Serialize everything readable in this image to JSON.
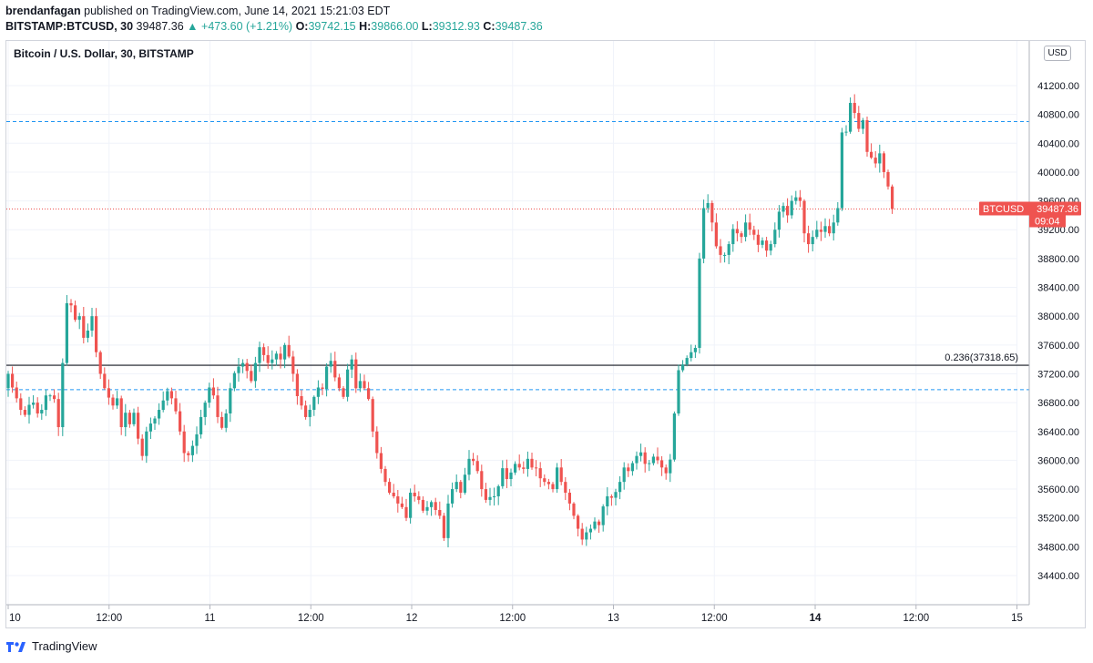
{
  "header": {
    "author": "brendanfagan",
    "published": "published on TradingView.com, June 14, 2021 15:21:03 EDT",
    "symbol": "BITSTAMP:BTCUSD, 30",
    "last": "39487.36",
    "change": "▲ +473.60 (+1.21%)",
    "o_label": "O:",
    "o": "39742.15",
    "h_label": "H:",
    "h": "39866.00",
    "l_label": "L:",
    "l": "39312.93",
    "c_label": "C:",
    "c": "39487.36"
  },
  "pane_title": "Bitcoin / U.S. Dollar, 30, BITSTAMP",
  "currency_badge": "USD",
  "price_tag": {
    "symbol": "BTCUSD",
    "price": "39487.36",
    "countdown": "09:04"
  },
  "fib_label": "0.236(37318.65)",
  "footer_brand": "TradingView",
  "colors": {
    "up": "#26a69a",
    "down": "#ef5350",
    "dashed": "#2196f3",
    "fib": "#131722"
  },
  "chart_data": {
    "type": "candlestick",
    "x_ticks": [
      "10",
      "12:00",
      "11",
      "12:00",
      "12",
      "12:00",
      "13",
      "12:00",
      "14",
      "12:00",
      "15"
    ],
    "bold_x_ticks": [
      "14"
    ],
    "y_ticks": [
      34400,
      34800,
      35200,
      35600,
      36000,
      36400,
      36800,
      37200,
      37600,
      38000,
      38400,
      38800,
      39200,
      39600,
      40000,
      40400,
      40800,
      41200
    ],
    "ylim": [
      34000,
      41450
    ],
    "horizontal_levels": [
      {
        "price": 40700,
        "style": "dashed"
      },
      {
        "price": 37318.65,
        "style": "solid",
        "label": "0.236(37318.65)"
      },
      {
        "price": 36980,
        "style": "dashed"
      }
    ],
    "last_price": 39487.36,
    "closes": [
      37200,
      37010,
      36860,
      36700,
      36630,
      36770,
      36800,
      36650,
      36700,
      36900,
      36900,
      36850,
      36460,
      37350,
      38180,
      38150,
      37950,
      38000,
      37700,
      37800,
      38000,
      37500,
      37200,
      37000,
      36870,
      36760,
      36860,
      36460,
      36660,
      36500,
      36660,
      36300,
      36060,
      36400,
      36510,
      36580,
      36700,
      36830,
      36960,
      36860,
      36680,
      36400,
      36100,
      36070,
      36200,
      36360,
      36600,
      36800,
      37010,
      36900,
      36600,
      36450,
      36650,
      37000,
      37210,
      37300,
      37350,
      37240,
      37100,
      37350,
      37570,
      37460,
      37350,
      37400,
      37480,
      37400,
      37600,
      37440,
      37200,
      36890,
      36760,
      36600,
      36700,
      36880,
      37010,
      36990,
      37300,
      37380,
      37150,
      37000,
      36880,
      37260,
      37400,
      37000,
      37100,
      37000,
      36850,
      36400,
      36100,
      35880,
      35700,
      35550,
      35500,
      35400,
      35350,
      35200,
      35550,
      35500,
      35450,
      35300,
      35350,
      35420,
      35310,
      35230,
      34920,
      35400,
      35600,
      35700,
      35550,
      35800,
      36020,
      35990,
      35850,
      35600,
      35450,
      35490,
      35500,
      35640,
      35890,
      35740,
      35830,
      35950,
      35900,
      35880,
      36020,
      35900,
      35890,
      35750,
      35700,
      35670,
      35600,
      35900,
      35700,
      35550,
      35400,
      35230,
      35050,
      34900,
      35000,
      35050,
      35150,
      35100,
      35360,
      35500,
      35480,
      35560,
      35700,
      35900,
      35850,
      35960,
      36060,
      36110,
      35950,
      35960,
      36050,
      36000,
      35900,
      35820,
      36010,
      36650,
      37250,
      37330,
      37420,
      37500,
      37560,
      38800,
      39500,
      39570,
      39300,
      38970,
      38850,
      38850,
      39000,
      39210,
      39150,
      39100,
      39300,
      39200,
      39130,
      38990,
      39050,
      38910,
      39000,
      39200,
      39450,
      39530,
      39400,
      39600,
      39650,
      39600,
      39150,
      39000,
      39100,
      39200,
      39170,
      39250,
      39150,
      39300,
      39500,
      40550,
      40560,
      40960,
      40820,
      40600,
      40720,
      40280,
      40200,
      40120,
      40260,
      40000,
      39800,
      39487.36
    ]
  }
}
